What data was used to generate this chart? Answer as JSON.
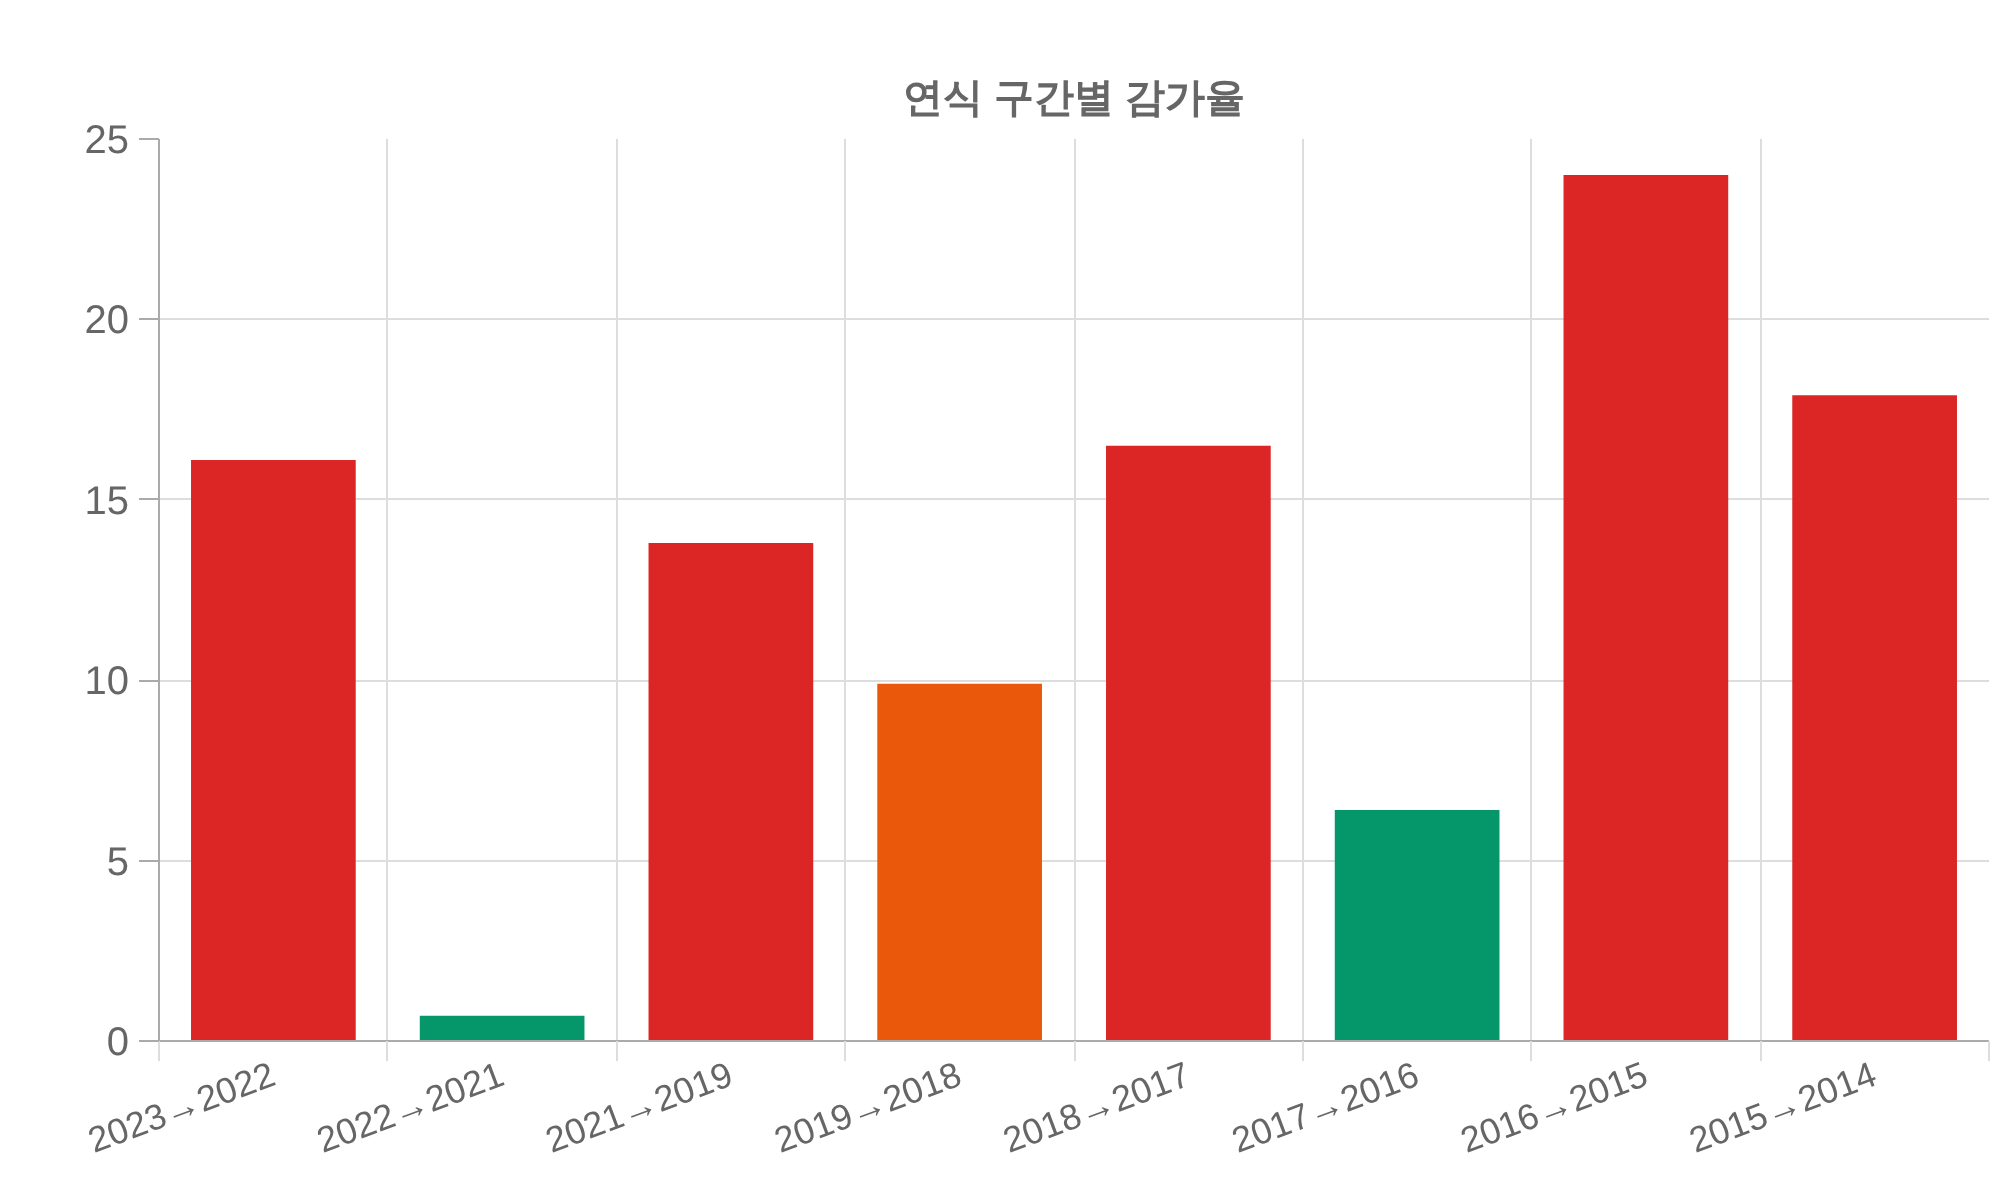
{
  "chart_data": {
    "type": "bar",
    "title": "연식 구간별 감가율",
    "categories": [
      "2023→2022",
      "2022→2021",
      "2021→2019",
      "2019→2018",
      "2018→2017",
      "2017→2016",
      "2016→2015",
      "2015→2014"
    ],
    "values": [
      16.1,
      0.7,
      13.8,
      9.9,
      16.5,
      6.4,
      24.0,
      17.9
    ],
    "colors": [
      "#dc2626",
      "#059669",
      "#dc2626",
      "#ea580c",
      "#dc2626",
      "#059669",
      "#dc2626",
      "#dc2626"
    ],
    "ylim": [
      0,
      25
    ],
    "yticks": [
      0,
      5,
      10,
      15,
      20,
      25
    ],
    "grid": true
  }
}
